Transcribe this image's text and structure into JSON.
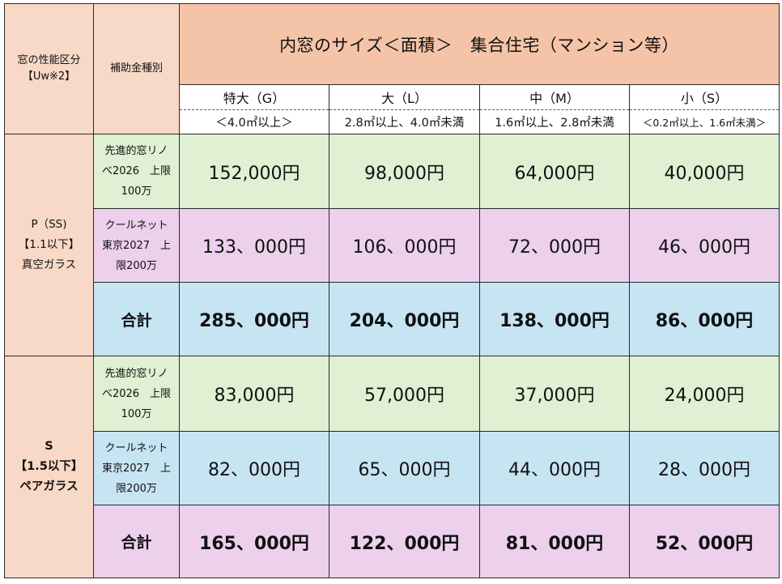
{
  "header": {
    "performance_label_line1": "窓の性能区分",
    "performance_label_line2": "【Uw※2】",
    "subsidy_type_label": "補助金種別",
    "title": "内窓のサイズ＜面積＞　集合住宅（マンション等）"
  },
  "sizes": [
    {
      "label": "特大（G）",
      "range": "＜4.0㎡以上＞"
    },
    {
      "label": "大（L）",
      "range": "2.8㎡以上、4.0㎡未満"
    },
    {
      "label": "中（M）",
      "range": "1.6㎡以上、2.8㎡未満"
    },
    {
      "label": "小（S）",
      "range": "＜0.2㎡以上、1.6㎡未満＞"
    }
  ],
  "groups": [
    {
      "category": {
        "line1": "P（SS)",
        "line2": "【1.1以下】",
        "line3": "真空ガラス"
      },
      "rows": [
        {
          "subsidy": {
            "line1": "先進的窓リノ",
            "line2": "べ2026　上限",
            "line3": "100万"
          },
          "values": [
            "152,000円",
            "98,000円",
            "64,000円",
            "40,000円"
          ]
        },
        {
          "subsidy": {
            "line1": "クールネット",
            "line2": "東京2027　上",
            "line3": "限200万"
          },
          "values": [
            "133、000円",
            "106、000円",
            "72、000円",
            "46、000円"
          ]
        }
      ],
      "total": {
        "label": "合計",
        "values": [
          "285、000円",
          "204、000円",
          "138、000円",
          "86、000円"
        ]
      }
    },
    {
      "category": {
        "line1": "S",
        "line2": "【1.5以下】",
        "line3": "ペアガラス"
      },
      "rows": [
        {
          "subsidy": {
            "line1": "先進的窓リノ",
            "line2": "べ2026　上限",
            "line3": "100万"
          },
          "values": [
            "83,000円",
            "57,000円",
            "37,000円",
            "24,000円"
          ]
        },
        {
          "subsidy": {
            "line1": "クールネット",
            "line2": "東京2027　上",
            "line3": "限200万"
          },
          "values": [
            "82、000円",
            "65、000円",
            "44、000円",
            "28、000円"
          ]
        }
      ],
      "total": {
        "label": "合計",
        "values": [
          "165、000円",
          "122、000円",
          "81、000円",
          "52、000円"
        ]
      }
    }
  ],
  "colors": {
    "header_light": "#f8d8c6",
    "header_title": "#f5c4a8",
    "green_row": "#dff0d3",
    "pink_row": "#ecd0ec",
    "blue_row": "#c7e4f3"
  }
}
